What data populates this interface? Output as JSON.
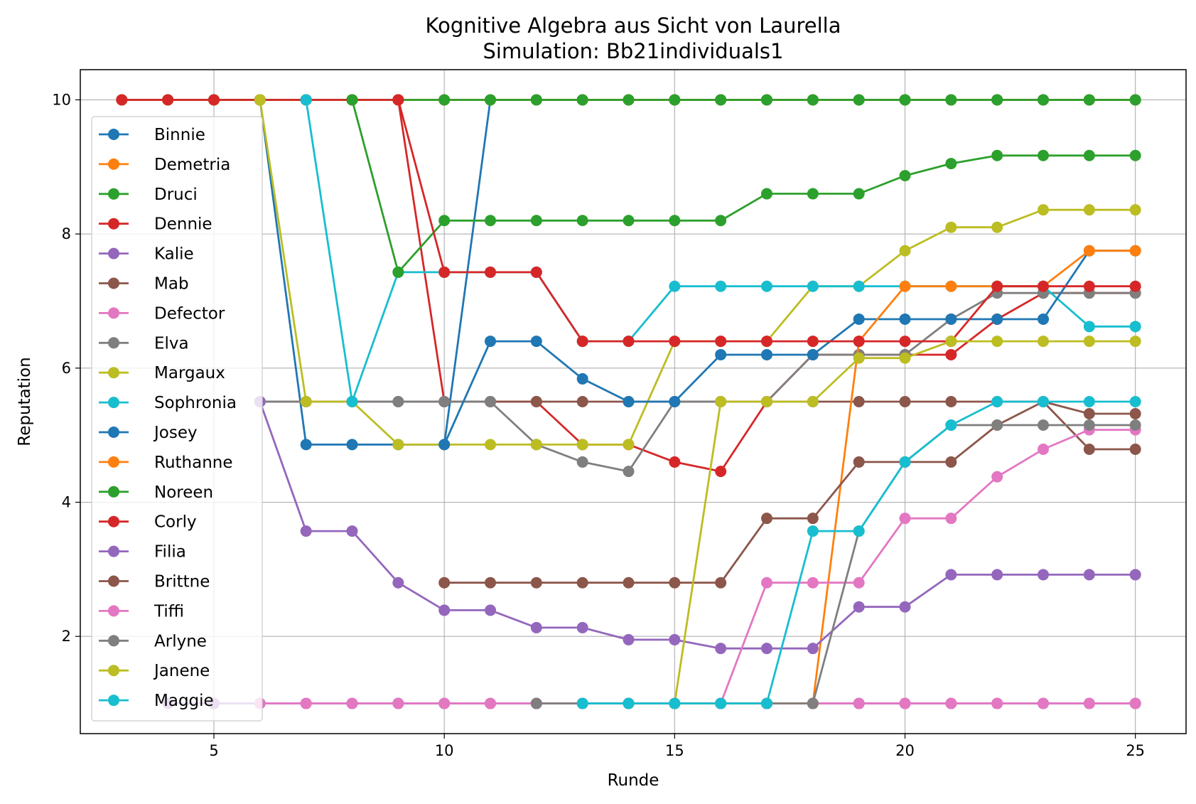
{
  "chart_data": {
    "type": "line",
    "title": "Kognitive Algebra aus Sicht von Laurella",
    "subtitle": "Simulation: Bb21individuals1",
    "xlabel": "Runde",
    "ylabel": "Reputation",
    "xlim": [
      2.1,
      26.1
    ],
    "ylim": [
      0.55,
      10.45
    ],
    "xticks": [
      5,
      10,
      15,
      20,
      25
    ],
    "yticks": [
      2,
      4,
      6,
      8,
      10
    ],
    "grid": true,
    "legend_position": "upper-left",
    "series": [
      {
        "name": "Binnie",
        "color": "#1f77b4",
        "x": [
          5,
          6,
          7,
          8,
          9,
          10,
          11,
          12,
          13,
          14,
          15,
          16,
          17,
          18,
          19,
          20,
          21,
          22,
          23,
          24,
          25
        ],
        "y": [
          10,
          10,
          4.86,
          4.86,
          4.86,
          4.86,
          10,
          10,
          10,
          10,
          10,
          10,
          10,
          10,
          10,
          10,
          10,
          10,
          10,
          10,
          10
        ]
      },
      {
        "name": "Demetria",
        "color": "#ff7f0e",
        "x": [
          3,
          4,
          5,
          6,
          7,
          8,
          9,
          10,
          11,
          12,
          13,
          14,
          15,
          16,
          17,
          18,
          19,
          20,
          21,
          22,
          23,
          24,
          25
        ],
        "y": [
          10,
          10,
          10,
          10,
          10,
          10,
          10,
          10,
          10,
          10,
          10,
          10,
          10,
          10,
          10,
          10,
          10,
          10,
          10,
          10,
          10,
          10,
          10
        ]
      },
      {
        "name": "Druci",
        "color": "#2ca02c",
        "x": [
          3,
          4,
          5,
          6,
          7,
          8,
          9,
          10,
          11,
          12,
          13,
          14,
          15,
          16,
          17,
          18,
          19,
          20,
          21,
          22,
          23,
          24,
          25
        ],
        "y": [
          10,
          10,
          10,
          10,
          10,
          10,
          10,
          10,
          10,
          10,
          10,
          10,
          10,
          10,
          10,
          10,
          10,
          10,
          10,
          10,
          10,
          10,
          10
        ]
      },
      {
        "name": "Dennie",
        "color": "#d62728",
        "x": [
          3,
          4,
          5,
          6,
          7,
          8,
          9,
          10,
          11,
          12,
          13,
          14,
          15,
          16,
          17,
          18,
          19,
          20,
          21,
          22,
          23,
          24,
          25
        ],
        "y": [
          10,
          10,
          10,
          10,
          10,
          10,
          10,
          5.5,
          5.5,
          5.5,
          4.86,
          4.86,
          4.6,
          4.46,
          5.5,
          6.2,
          6.2,
          6.2,
          6.2,
          6.73,
          7.12,
          7.12,
          7.12
        ]
      },
      {
        "name": "Kalie",
        "color": "#9467bd",
        "x": [
          4,
          5,
          6,
          7,
          8,
          9,
          10,
          11,
          12,
          13,
          14,
          15,
          16,
          17,
          18,
          19,
          20,
          21,
          22,
          23,
          24,
          25
        ],
        "y": [
          1,
          1,
          1,
          1,
          1,
          1,
          1,
          1,
          1,
          1,
          1,
          1,
          1,
          1,
          1,
          1,
          1,
          1,
          1,
          1,
          1,
          1
        ]
      },
      {
        "name": "Mab",
        "color": "#8c564b",
        "x": [
          6,
          7,
          8,
          9,
          10,
          11,
          12,
          13,
          14,
          15,
          16,
          17,
          18,
          19,
          20,
          21,
          22,
          23,
          24,
          25
        ],
        "y": [
          5.5,
          5.5,
          5.5,
          5.5,
          5.5,
          5.5,
          5.5,
          5.5,
          5.5,
          5.5,
          5.5,
          5.5,
          5.5,
          5.5,
          5.5,
          5.5,
          5.5,
          5.5,
          4.79,
          4.79
        ]
      },
      {
        "name": "Defector",
        "color": "#e377c2",
        "x": [
          6,
          7,
          8,
          9,
          10,
          11,
          12,
          13,
          14,
          15,
          16,
          17,
          18,
          19,
          20,
          21,
          22,
          23,
          24,
          25
        ],
        "y": [
          1,
          1,
          1,
          1,
          1,
          1,
          1,
          1,
          1,
          1,
          1,
          1,
          1,
          1,
          1,
          1,
          1,
          1,
          1,
          1
        ]
      },
      {
        "name": "Elva",
        "color": "#7f7f7f",
        "x": [
          6,
          7,
          8,
          9,
          10,
          11,
          12,
          13,
          14,
          15,
          16,
          17,
          18,
          19,
          20,
          21,
          22,
          23,
          24,
          25
        ],
        "y": [
          5.5,
          5.5,
          5.5,
          5.5,
          5.5,
          5.5,
          4.86,
          4.6,
          4.46,
          5.5,
          5.5,
          5.5,
          6.2,
          6.2,
          6.2,
          6.73,
          7.12,
          7.12,
          7.12,
          7.12
        ]
      },
      {
        "name": "Margaux",
        "color": "#bcbd22",
        "x": [
          6,
          7,
          8,
          9,
          10,
          11,
          12,
          13,
          14,
          15,
          16,
          17,
          18,
          19,
          20,
          21,
          22,
          23,
          24,
          25
        ],
        "y": [
          10,
          5.5,
          5.5,
          4.86,
          4.86,
          4.86,
          4.86,
          4.86,
          4.86,
          6.4,
          6.4,
          6.4,
          7.22,
          7.22,
          7.75,
          8.1,
          8.1,
          8.36,
          8.36,
          8.36
        ]
      },
      {
        "name": "Sophronia",
        "color": "#17becf",
        "x": [
          7,
          8,
          9,
          10,
          11,
          12,
          13,
          14,
          15,
          16,
          17,
          18,
          19,
          20,
          21,
          22,
          23,
          24,
          25
        ],
        "y": [
          10,
          5.5,
          7.43,
          7.43,
          7.43,
          7.43,
          6.4,
          6.4,
          7.22,
          7.22,
          7.22,
          7.22,
          7.22,
          7.22,
          7.22,
          7.22,
          7.22,
          6.62,
          6.62
        ]
      },
      {
        "name": "Josey",
        "color": "#1f77b4",
        "x": [
          10,
          11,
          12,
          13,
          14,
          15,
          16,
          17,
          18,
          19,
          20,
          21,
          22,
          23,
          24,
          25
        ],
        "y": [
          4.86,
          6.4,
          6.4,
          5.84,
          5.5,
          5.5,
          6.2,
          6.2,
          6.2,
          6.73,
          6.73,
          6.73,
          6.73,
          6.73,
          7.75,
          7.75
        ]
      },
      {
        "name": "Ruthanne",
        "color": "#ff7f0e",
        "x": [
          15,
          16,
          17,
          18,
          19,
          20,
          21,
          22,
          23,
          24,
          25
        ],
        "y": [
          1,
          1,
          1,
          1,
          6.4,
          7.22,
          7.22,
          7.22,
          7.22,
          7.75,
          7.75
        ]
      },
      {
        "name": "Noreen",
        "color": "#2ca02c",
        "x": [
          8,
          9,
          10,
          11,
          12,
          13,
          14,
          15,
          16,
          17,
          18,
          19,
          20,
          21,
          22,
          23,
          24,
          25
        ],
        "y": [
          10,
          7.43,
          8.2,
          8.2,
          8.2,
          8.2,
          8.2,
          8.2,
          8.2,
          8.6,
          8.6,
          8.6,
          8.87,
          9.05,
          9.17,
          9.17,
          9.17,
          9.17
        ]
      },
      {
        "name": "Corly",
        "color": "#d62728",
        "x": [
          9,
          10,
          11,
          12,
          13,
          14,
          15,
          16,
          17,
          18,
          19,
          20,
          21,
          22,
          23,
          24,
          25
        ],
        "y": [
          10,
          7.43,
          7.43,
          7.43,
          6.4,
          6.4,
          6.4,
          6.4,
          6.4,
          6.4,
          6.4,
          6.4,
          6.4,
          7.22,
          7.22,
          7.22,
          7.22
        ]
      },
      {
        "name": "Filia",
        "color": "#9467bd",
        "x": [
          6,
          7,
          8,
          9,
          10,
          11,
          12,
          13,
          14,
          15,
          16,
          17,
          18,
          19,
          20,
          21,
          22,
          23,
          24,
          25
        ],
        "y": [
          5.5,
          3.57,
          3.57,
          2.8,
          2.39,
          2.39,
          2.13,
          2.13,
          1.95,
          1.95,
          1.82,
          1.82,
          1.82,
          2.44,
          2.44,
          2.92,
          2.92,
          2.92,
          2.92,
          2.92
        ]
      },
      {
        "name": "Brittne",
        "color": "#8c564b",
        "x": [
          10,
          11,
          12,
          13,
          14,
          15,
          16,
          17,
          18,
          19,
          20,
          21,
          22,
          23,
          24,
          25
        ],
        "y": [
          2.8,
          2.8,
          2.8,
          2.8,
          2.8,
          2.8,
          2.8,
          3.76,
          3.76,
          4.6,
          4.6,
          4.6,
          5.15,
          5.5,
          5.32,
          5.32
        ]
      },
      {
        "name": "Tiffi",
        "color": "#e377c2",
        "x": [
          16,
          17,
          18,
          19,
          20,
          21,
          22,
          23,
          24,
          25
        ],
        "y": [
          1,
          2.8,
          2.8,
          2.8,
          3.76,
          3.76,
          4.38,
          4.79,
          5.08,
          5.08
        ]
      },
      {
        "name": "Arlyne",
        "color": "#7f7f7f",
        "x": [
          12,
          13,
          14,
          15,
          16,
          17,
          18,
          19,
          20,
          21,
          22,
          23,
          24,
          25
        ],
        "y": [
          1,
          1,
          1,
          1,
          1,
          1,
          1,
          3.57,
          4.6,
          5.15,
          5.15,
          5.15,
          5.15,
          5.15
        ]
      },
      {
        "name": "Janene",
        "color": "#bcbd22",
        "x": [
          15,
          16,
          17,
          18,
          19,
          20,
          21,
          22,
          23,
          24,
          25
        ],
        "y": [
          1,
          5.5,
          5.5,
          5.5,
          6.15,
          6.15,
          6.4,
          6.4,
          6.4,
          6.4,
          6.4
        ]
      },
      {
        "name": "Maggie",
        "color": "#17becf",
        "x": [
          13,
          14,
          15,
          16,
          17,
          18,
          19,
          20,
          21,
          22,
          23,
          24,
          25
        ],
        "y": [
          1,
          1,
          1,
          1,
          1,
          3.57,
          3.57,
          4.6,
          5.15,
          5.5,
          5.5,
          5.5,
          5.5
        ]
      }
    ]
  }
}
